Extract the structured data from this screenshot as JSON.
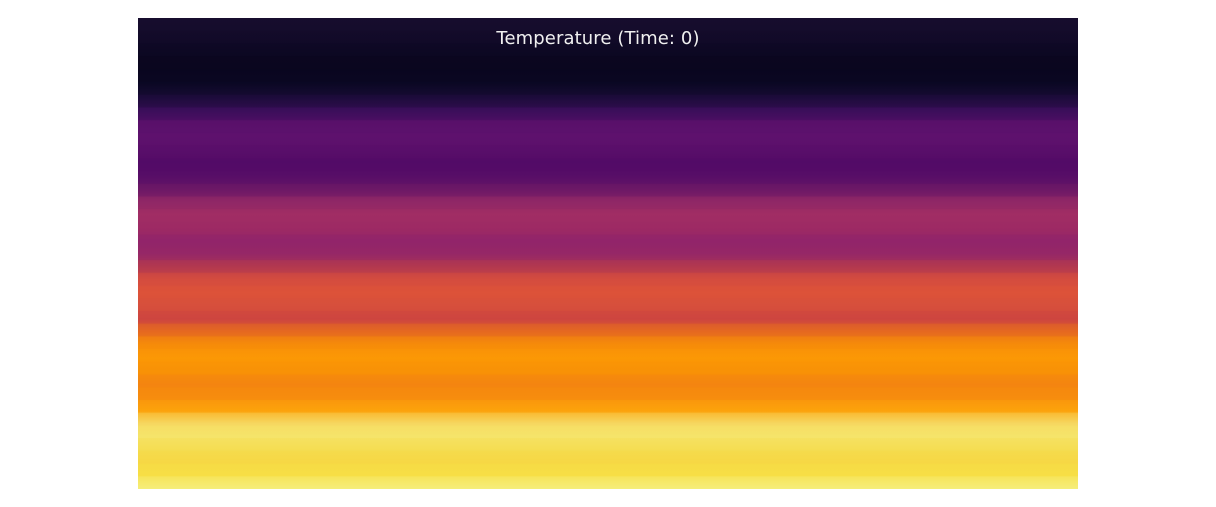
{
  "chart_data": {
    "type": "heatmap",
    "title": "Temperature (Time: 0)",
    "xlabel": "",
    "ylabel": "",
    "colorscale": "inferno",
    "grid": false,
    "legend": "none",
    "color_stops": [
      "#0a0722",
      "#140b34",
      "#4a0c6b",
      "#5c126e",
      "#a12c64",
      "#bb3755",
      "#dd513a",
      "#ed6925",
      "#fb9b06",
      "#f7d13d",
      "#f5f18f",
      "#fcffa4"
    ],
    "row_colors": [
      "#170d2e",
      "#140b2a",
      "#0f0a26",
      "#0b0720",
      "#0a0720",
      "#0c0924",
      "#1c0c3a",
      "#3a0e5a",
      "#5a106b",
      "#5e126e",
      "#5a0f6a",
      "#520b67",
      "#570d68",
      "#6b1866",
      "#8f2766",
      "#a12d64",
      "#9e2a64",
      "#92246a",
      "#962767",
      "#b3384f",
      "#d54c3f",
      "#dd5239",
      "#d74f3c",
      "#cd4640",
      "#e66a20",
      "#f68c0a",
      "#fb9806",
      "#f89207",
      "#f48510",
      "#f78c0e",
      "#fca20c",
      "#f6d860",
      "#f5e46b",
      "#f5de52",
      "#f6d845",
      "#f7df46",
      "#f5ee7a"
    ]
  }
}
